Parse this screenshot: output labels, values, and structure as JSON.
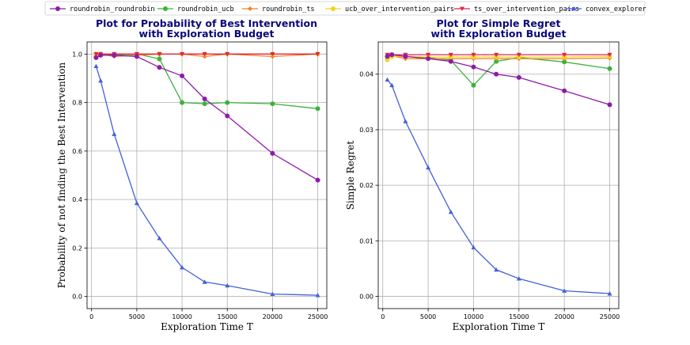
{
  "chart_data": [
    {
      "type": "line",
      "title": [
        "Plot for Probability of Best Intervention",
        "with Exploration Budget"
      ],
      "xlabel": "Exploration Time T",
      "ylabel": "Probability of not finding the Best Intervention",
      "xlim": [
        -500,
        26000
      ],
      "ylim": [
        -0.05,
        1.05
      ],
      "xticks": [
        0,
        5000,
        10000,
        15000,
        20000,
        25000
      ],
      "xtick_labels": [
        "0",
        "5000",
        "10000",
        "15000",
        "20000",
        "25000"
      ],
      "yticks": [
        0.0,
        0.2,
        0.4,
        0.6,
        0.8,
        1.0
      ],
      "ytick_labels": [
        "0.0",
        "0.2",
        "0.4",
        "0.6",
        "0.8",
        "1.0"
      ],
      "grid": true,
      "series": [
        {
          "name": "roundrobin_ucb",
          "x": [
            500,
            1000,
            2500,
            5000,
            7500,
            10000,
            12500,
            15000,
            20000,
            25000
          ],
          "values": [
            0.99,
            1.0,
            0.995,
            1.0,
            0.98,
            0.8,
            0.795,
            0.8,
            0.795,
            0.775
          ]
        },
        {
          "name": "roundrobin_ts",
          "x": [
            500,
            1000,
            2500,
            5000,
            7500,
            10000,
            12500,
            15000,
            20000,
            25000
          ],
          "values": [
            0.995,
            1.0,
            0.99,
            0.995,
            1.0,
            1.0,
            0.99,
            1.0,
            0.99,
            1.0
          ]
        },
        {
          "name": "ucb_over_intervention_pairs",
          "x": [
            500,
            1000,
            2500,
            5000,
            7500,
            10000,
            12500,
            15000,
            20000,
            25000
          ],
          "values": [
            1.0,
            1.0,
            1.0,
            1.0,
            1.0,
            1.0,
            1.0,
            1.0,
            1.0,
            1.0
          ]
        },
        {
          "name": "ts_over_intervention_pairs",
          "x": [
            500,
            1000,
            2500,
            5000,
            7500,
            10000,
            12500,
            15000,
            20000,
            25000
          ],
          "values": [
            1.0,
            1.0,
            1.0,
            1.0,
            1.0,
            1.0,
            1.0,
            1.0,
            1.0,
            1.0
          ]
        },
        {
          "name": "roundrobin_roundrobin",
          "x": [
            500,
            1000,
            2500,
            5000,
            7500,
            10000,
            12500,
            15000,
            20000,
            25000
          ],
          "values": [
            0.985,
            0.995,
            0.995,
            0.99,
            0.945,
            0.91,
            0.815,
            0.745,
            0.59,
            0.48
          ]
        },
        {
          "name": "convex_explorer",
          "x": [
            500,
            1000,
            2500,
            5000,
            7500,
            10000,
            12500,
            15000,
            20000,
            25000
          ],
          "values": [
            0.95,
            0.89,
            0.67,
            0.385,
            0.24,
            0.12,
            0.06,
            0.045,
            0.01,
            0.005
          ]
        }
      ]
    },
    {
      "type": "line",
      "title": [
        "Plot for Simple Regret",
        "with Exploration Budget"
      ],
      "xlabel": "Exploration Time T",
      "ylabel": "Simple Regret",
      "xlim": [
        -500,
        26000
      ],
      "ylim": [
        -0.0022,
        0.0458
      ],
      "xticks": [
        0,
        5000,
        10000,
        15000,
        20000,
        25000
      ],
      "xtick_labels": [
        "0",
        "5000",
        "10000",
        "15000",
        "20000",
        "25000"
      ],
      "yticks": [
        0.0,
        0.01,
        0.02,
        0.03,
        0.04
      ],
      "ytick_labels": [
        "0.00",
        "0.01",
        "0.02",
        "0.03",
        "0.04"
      ],
      "grid": true,
      "series": [
        {
          "name": "roundrobin_ucb",
          "x": [
            500,
            1000,
            2500,
            5000,
            7500,
            10000,
            12500,
            15000,
            20000,
            25000
          ],
          "values": [
            0.0427,
            0.0432,
            0.0432,
            0.043,
            0.0425,
            0.038,
            0.0423,
            0.043,
            0.0422,
            0.041
          ]
        },
        {
          "name": "roundrobin_ts",
          "x": [
            500,
            1000,
            2500,
            5000,
            7500,
            10000,
            12500,
            15000,
            20000,
            25000
          ],
          "values": [
            0.0428,
            0.0433,
            0.0428,
            0.0428,
            0.0428,
            0.0428,
            0.0428,
            0.0428,
            0.0428,
            0.0429
          ]
        },
        {
          "name": "ucb_over_intervention_pairs",
          "x": [
            500,
            1000,
            2500,
            5000,
            7500,
            10000,
            12500,
            15000,
            20000,
            25000
          ],
          "values": [
            0.0426,
            0.0432,
            0.0432,
            0.0431,
            0.0431,
            0.0431,
            0.0431,
            0.0431,
            0.0431,
            0.0432
          ]
        },
        {
          "name": "ts_over_intervention_pairs",
          "x": [
            500,
            1000,
            2500,
            5000,
            7500,
            10000,
            12500,
            15000,
            20000,
            25000
          ],
          "values": [
            0.0435,
            0.0435,
            0.0435,
            0.0435,
            0.0435,
            0.0435,
            0.0435,
            0.0435,
            0.0435,
            0.0435
          ]
        },
        {
          "name": "roundrobin_roundrobin",
          "x": [
            500,
            1000,
            2500,
            5000,
            7500,
            10000,
            12500,
            15000,
            20000,
            25000
          ],
          "values": [
            0.0432,
            0.0435,
            0.0432,
            0.0428,
            0.0423,
            0.0413,
            0.04,
            0.0394,
            0.037,
            0.0345
          ]
        },
        {
          "name": "convex_explorer",
          "x": [
            500,
            1000,
            2500,
            5000,
            7500,
            10000,
            12500,
            15000,
            20000,
            25000
          ],
          "values": [
            0.039,
            0.038,
            0.0315,
            0.0232,
            0.0152,
            0.0088,
            0.0048,
            0.0032,
            0.001,
            0.0005
          ]
        }
      ]
    }
  ],
  "legend": {
    "placement": "top",
    "items": [
      {
        "name": "roundrobin_roundrobin",
        "color": "#8e1aa8",
        "marker": "circle"
      },
      {
        "name": "roundrobin_ucb",
        "color": "#3cb23c",
        "marker": "circle"
      },
      {
        "name": "roundrobin_ts",
        "color": "#f07f2a",
        "marker": "diamond"
      },
      {
        "name": "ucb_over_intervention_pairs",
        "color": "#f2d21e",
        "marker": "circle"
      },
      {
        "name": "ts_over_intervention_pairs",
        "color": "#e0244c",
        "marker": "triangle-down"
      },
      {
        "name": "convex_explorer",
        "color": "#4460d8",
        "marker": "triangle-up"
      }
    ]
  }
}
